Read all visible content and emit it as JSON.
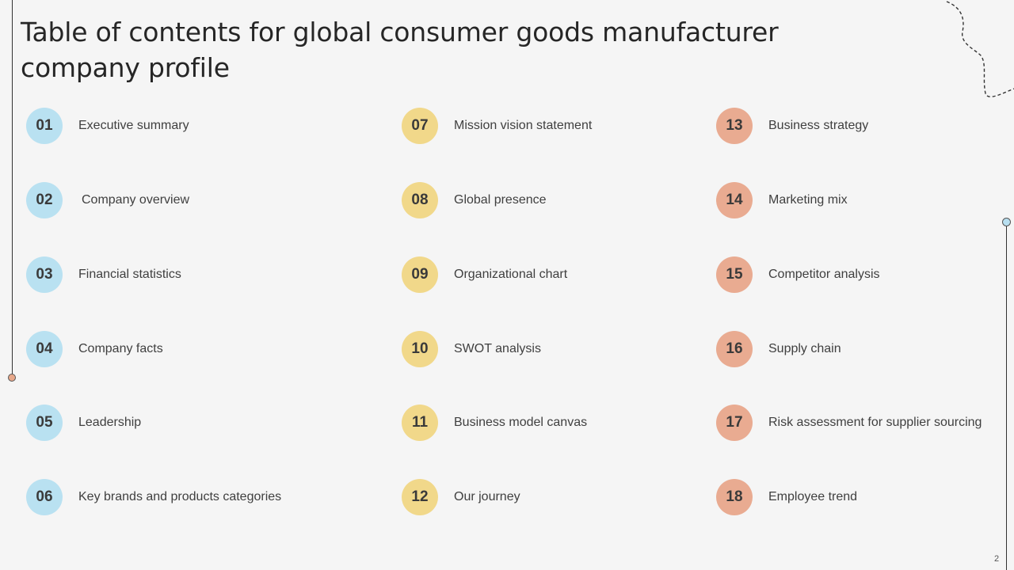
{
  "slide": {
    "title": "Table of contents for global consumer goods manufacturer company profile",
    "page_number": "2"
  },
  "colors": {
    "blue_badge": "#b9e1f1",
    "yellow_badge": "#f1d88a",
    "salmon_badge": "#e9ab91",
    "background": "#f5f5f5",
    "text": "#3f3f3f"
  },
  "toc": {
    "column1": [
      {
        "number": "01",
        "label": "Executive summary"
      },
      {
        "number": "02",
        "label": "Company overview"
      },
      {
        "number": "03",
        "label": "Financial statistics"
      },
      {
        "number": "04",
        "label": "Company facts"
      },
      {
        "number": "05",
        "label": "Leadership"
      },
      {
        "number": "06",
        "label": "Key brands and products categories"
      }
    ],
    "column2": [
      {
        "number": "07",
        "label": "Mission vision statement"
      },
      {
        "number": "08",
        "label": "Global presence"
      },
      {
        "number": "09",
        "label": "Organizational chart"
      },
      {
        "number": "10",
        "label": "SWOT analysis"
      },
      {
        "number": "11",
        "label": "Business model canvas"
      },
      {
        "number": "12",
        "label": "Our journey"
      }
    ],
    "column3": [
      {
        "number": "13",
        "label": "Business strategy"
      },
      {
        "number": "14",
        "label": "Marketing mix"
      },
      {
        "number": "15",
        "label": "Competitor analysis"
      },
      {
        "number": "16",
        "label": "Supply chain"
      },
      {
        "number": "17",
        "label": "Risk assessment for supplier sourcing"
      },
      {
        "number": "18",
        "label": "Employee trend"
      }
    ]
  }
}
